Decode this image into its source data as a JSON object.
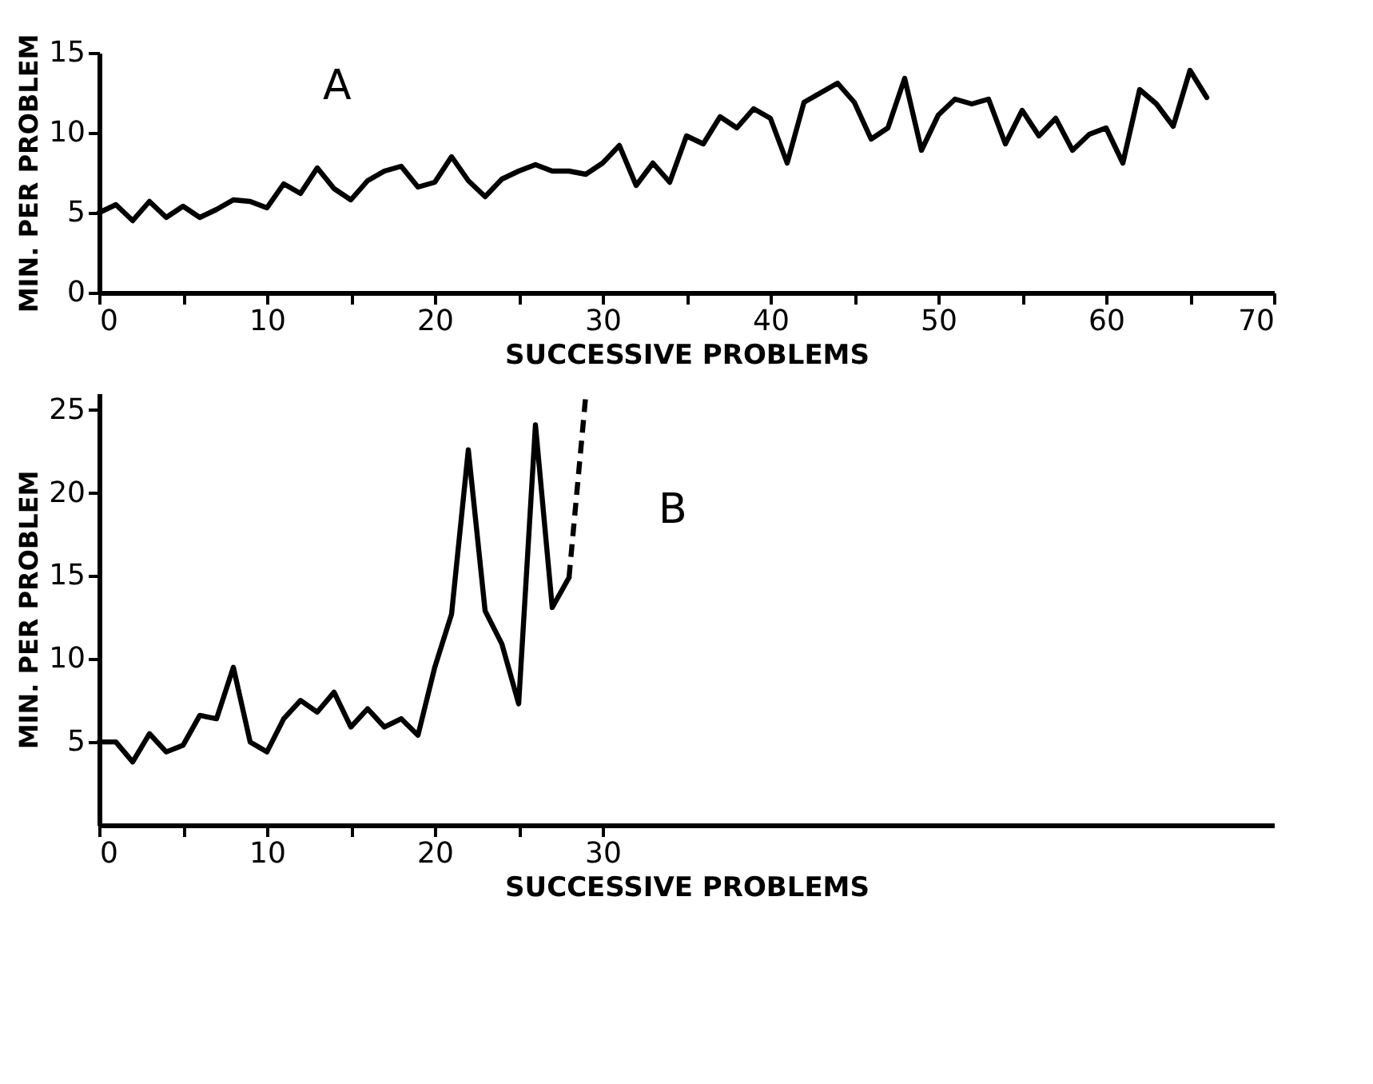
{
  "chart_data": [
    {
      "type": "line",
      "title": "A",
      "xlabel": "SUCCESSIVE  PROBLEMS",
      "ylabel": "MIN. PER PROBLEM",
      "xlim": [
        0,
        70
      ],
      "ylim": [
        0,
        15
      ],
      "xticks": [
        0,
        {
          "value": 5,
          "label": null
        },
        10,
        {
          "value": 15,
          "label": null
        },
        20,
        {
          "value": 25,
          "label": null
        },
        30,
        {
          "value": 35,
          "label": null
        },
        40,
        {
          "value": 45,
          "label": null
        },
        50,
        {
          "value": 55,
          "label": null
        },
        60,
        {
          "value": 65,
          "label": null
        },
        70
      ],
      "yticks": [
        0,
        5,
        10,
        15
      ],
      "grid": false,
      "marker": "none",
      "series": [
        {
          "color": "#000000",
          "line_style": "solid",
          "x": [
            0,
            1,
            2,
            3,
            4,
            5,
            6,
            7,
            8,
            9,
            10,
            11,
            12,
            13,
            14,
            15,
            16,
            17,
            18,
            19,
            20,
            21,
            22,
            23,
            24,
            25,
            26,
            27,
            28,
            29,
            30,
            31,
            32,
            33,
            34,
            35,
            36,
            37,
            38,
            39,
            40,
            41,
            42,
            43,
            44,
            45,
            46,
            47,
            48,
            49,
            50,
            51,
            52,
            53,
            54,
            55,
            56,
            57,
            58,
            59,
            60,
            61,
            62,
            63,
            64,
            65,
            66
          ],
          "values": [
            5.0,
            5.5,
            4.5,
            5.7,
            4.7,
            5.4,
            4.7,
            5.2,
            5.8,
            5.7,
            5.3,
            6.8,
            6.2,
            7.8,
            6.5,
            5.8,
            7.0,
            7.6,
            7.9,
            6.6,
            6.9,
            8.5,
            7.0,
            6.0,
            7.1,
            7.6,
            8.0,
            7.6,
            7.6,
            7.4,
            8.1,
            9.2,
            6.7,
            8.1,
            6.9,
            9.8,
            9.3,
            11.0,
            10.3,
            11.5,
            10.9,
            8.1,
            11.9,
            12.5,
            13.1,
            11.9,
            9.6,
            10.3,
            13.4,
            8.9,
            11.1,
            12.1,
            11.8,
            12.1,
            9.3,
            11.4,
            9.8,
            10.9,
            8.9,
            9.9,
            10.3,
            8.1,
            12.7,
            11.8,
            10.4,
            13.9,
            12.2
          ]
        }
      ]
    },
    {
      "type": "line",
      "title": "B",
      "xlabel": "SUCCESSIVE  PROBLEMS",
      "ylabel": "MIN. PER PROBLEM",
      "xlim": [
        0,
        70
      ],
      "ylim": [
        0,
        26
      ],
      "xticks": [
        0,
        {
          "value": 5,
          "label": null
        },
        10,
        {
          "value": 15,
          "label": null
        },
        20,
        {
          "value": 25,
          "label": null
        },
        30
      ],
      "yticks": [
        5,
        10,
        15,
        20,
        25
      ],
      "grid": false,
      "marker": "none",
      "series": [
        {
          "color": "#000000",
          "line_style": "solid",
          "x": [
            0,
            1,
            2,
            3,
            4,
            5,
            6,
            7,
            8,
            9,
            10,
            11,
            12,
            13,
            14,
            15,
            16,
            17,
            18,
            19,
            20,
            21,
            22,
            23,
            24,
            25,
            26,
            27,
            28
          ],
          "values": [
            5.0,
            5.0,
            3.8,
            5.5,
            4.4,
            4.8,
            6.6,
            6.4,
            9.5,
            5.0,
            4.4,
            6.4,
            7.5,
            6.8,
            8.0,
            5.9,
            7.0,
            5.9,
            6.4,
            5.4,
            9.5,
            12.7,
            22.6,
            12.9,
            10.9,
            7.3,
            24.1,
            13.1,
            14.9
          ]
        },
        {
          "color": "#000000",
          "line_style": "dashed",
          "x": [
            28,
            29
          ],
          "values": [
            14.9,
            25.9
          ]
        }
      ]
    }
  ]
}
